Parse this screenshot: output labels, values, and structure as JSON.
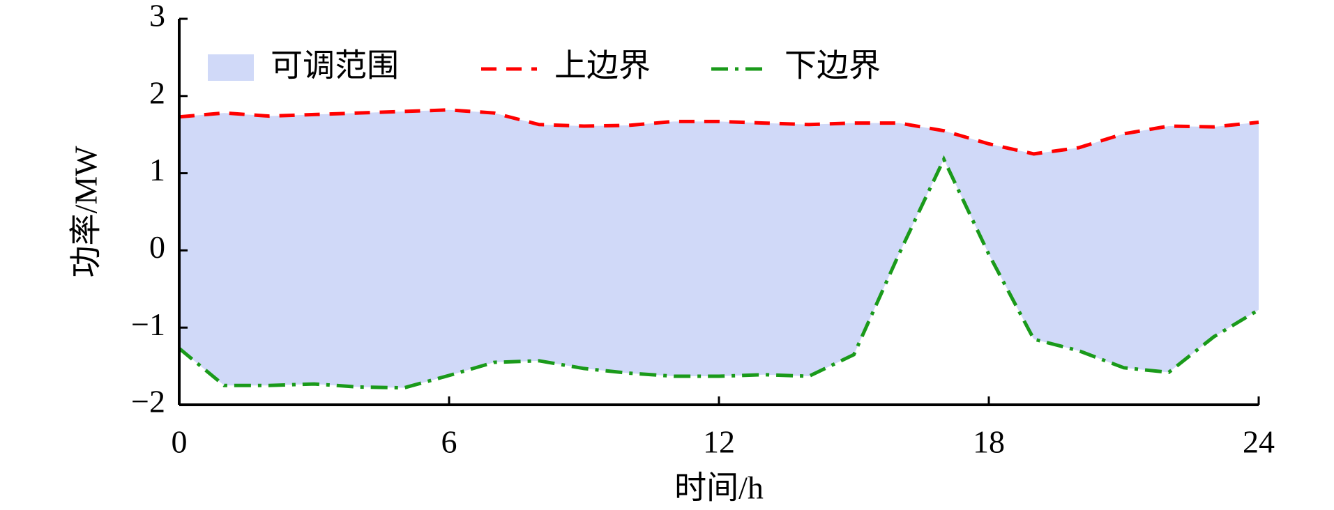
{
  "chart_data": {
    "type": "line",
    "xlabel": "时间/h",
    "ylabel": "功率/MW",
    "x": [
      0,
      1,
      2,
      3,
      4,
      5,
      6,
      7,
      8,
      9,
      10,
      11,
      12,
      13,
      14,
      15,
      16,
      17,
      18,
      19,
      20,
      21,
      22,
      23,
      24
    ],
    "xlim": [
      0,
      24
    ],
    "xticks": [
      0,
      6,
      12,
      18,
      24
    ],
    "ylim": [
      -2,
      3
    ],
    "yticks": [
      {
        "value": -2,
        "label": "−2"
      },
      {
        "value": -1,
        "label": "−1"
      },
      0,
      1,
      2,
      3
    ],
    "fill_between": {
      "name": "可调范围",
      "color": "#d0d9f8"
    },
    "series": [
      {
        "name": "上边界",
        "color": "#ff0000",
        "dash": "dashed",
        "values": [
          1.73,
          1.78,
          1.74,
          1.76,
          1.78,
          1.8,
          1.82,
          1.78,
          1.63,
          1.61,
          1.62,
          1.67,
          1.67,
          1.65,
          1.63,
          1.65,
          1.65,
          1.55,
          1.38,
          1.25,
          1.33,
          1.51,
          1.61,
          1.6,
          1.66
        ]
      },
      {
        "name": "下边界",
        "color": "#1a9a1a",
        "dash": "dashdot",
        "values": [
          -1.27,
          -1.75,
          -1.75,
          -1.73,
          -1.77,
          -1.78,
          -1.62,
          -1.45,
          -1.43,
          -1.53,
          -1.59,
          -1.63,
          -1.63,
          -1.61,
          -1.63,
          -1.35,
          -0.05,
          1.18,
          -0.05,
          -1.15,
          -1.3,
          -1.52,
          -1.58,
          -1.12,
          -0.77
        ]
      }
    ]
  }
}
